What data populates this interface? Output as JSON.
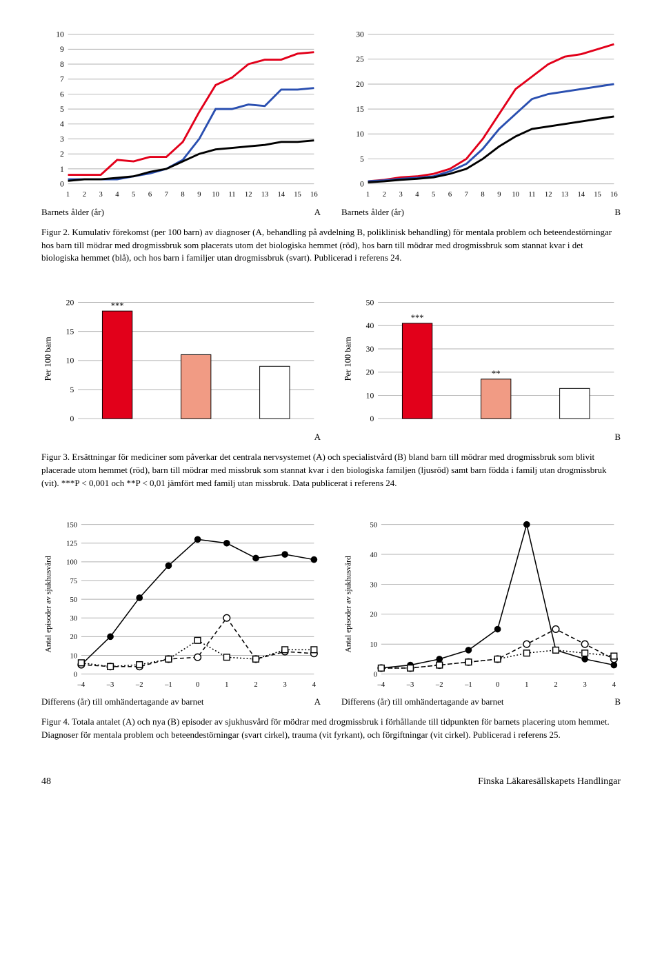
{
  "colors": {
    "red": "#e2001a",
    "blue": "#2a4fb0",
    "black": "#000000",
    "salmon": "#f19b84",
    "white": "#ffffff",
    "grid": "#b0b0b0",
    "text": "#000000"
  },
  "fig2": {
    "A": {
      "ylim": [
        0,
        10
      ],
      "yticks": [
        0,
        1,
        2,
        3,
        4,
        5,
        6,
        7,
        8,
        9,
        10
      ],
      "xlim": [
        1,
        16
      ],
      "xticks": [
        1,
        2,
        3,
        4,
        5,
        6,
        7,
        8,
        9,
        10,
        11,
        12,
        13,
        14,
        15,
        16
      ],
      "xlabel": "Barnets ålder (år)",
      "panel": "A",
      "series": [
        {
          "color": "red",
          "width": 3,
          "y": [
            0.6,
            0.6,
            0.6,
            1.6,
            1.5,
            1.8,
            1.8,
            2.8,
            4.8,
            6.6,
            7.1,
            8.0,
            8.3,
            8.3,
            8.7,
            8.8
          ]
        },
        {
          "color": "blue",
          "width": 3,
          "y": [
            0.3,
            0.3,
            0.3,
            0.3,
            0.5,
            0.7,
            1.0,
            1.6,
            3.0,
            5.0,
            5.0,
            5.3,
            5.2,
            6.3,
            6.3,
            6.4
          ]
        },
        {
          "color": "black",
          "width": 3,
          "y": [
            0.2,
            0.3,
            0.3,
            0.4,
            0.5,
            0.8,
            1.0,
            1.5,
            2.0,
            2.3,
            2.4,
            2.5,
            2.6,
            2.8,
            2.8,
            2.9
          ]
        }
      ]
    },
    "B": {
      "ylim": [
        0,
        30
      ],
      "yticks": [
        0,
        5,
        10,
        15,
        20,
        25,
        30
      ],
      "xlim": [
        1,
        16
      ],
      "xticks": [
        1,
        2,
        3,
        4,
        5,
        6,
        7,
        8,
        9,
        10,
        11,
        12,
        13,
        14,
        15,
        16
      ],
      "xlabel": "Barnets ålder (år)",
      "panel": "B",
      "series": [
        {
          "color": "red",
          "width": 3,
          "y": [
            0.5,
            0.8,
            1.3,
            1.5,
            2.0,
            3.0,
            5.0,
            9.0,
            14.0,
            19.0,
            21.5,
            24.0,
            25.5,
            26.0,
            27.0,
            28.0
          ]
        },
        {
          "color": "blue",
          "width": 3,
          "y": [
            0.5,
            0.7,
            1.0,
            1.2,
            1.5,
            2.5,
            4.0,
            7.0,
            11.0,
            14.0,
            17.0,
            18.0,
            18.5,
            19.0,
            19.5,
            20.0
          ]
        },
        {
          "color": "black",
          "width": 3,
          "y": [
            0.3,
            0.5,
            0.8,
            1.0,
            1.3,
            2.0,
            3.0,
            5.0,
            7.5,
            9.5,
            11.0,
            11.5,
            12.0,
            12.5,
            13.0,
            13.5
          ]
        }
      ]
    },
    "caption": "Figur 2. Kumulativ förekomst (per 100 barn) av diagnoser (A, behandling på avdelning B, poliklinisk behandling) för mentala problem och beteendestörningar hos barn till mödrar med drogmissbruk som placerats utom det biologiska hemmet (röd), hos barn till mödrar med drogmissbruk som stannat kvar i det biologiska hemmet (blå), och hos barn i familjer utan drogmissbruk (svart). Publicerad i referens 24."
  },
  "fig3": {
    "A": {
      "ylim": [
        0,
        20
      ],
      "yticks": [
        0,
        5,
        10,
        15,
        20
      ],
      "ylabel": "Per 100 barn",
      "panel": "A",
      "bars": [
        {
          "v": 18.5,
          "fill": "red",
          "sig": "***"
        },
        {
          "v": 11,
          "fill": "salmon"
        },
        {
          "v": 9,
          "fill": "white"
        }
      ]
    },
    "B": {
      "ylim": [
        0,
        50
      ],
      "yticks": [
        0,
        10,
        20,
        30,
        40,
        50
      ],
      "ylabel": "Per 100 barn",
      "panel": "B",
      "bars": [
        {
          "v": 41,
          "fill": "red",
          "sig": "***"
        },
        {
          "v": 17,
          "fill": "salmon",
          "sig": "**"
        },
        {
          "v": 13,
          "fill": "white"
        }
      ]
    },
    "caption": "Figur 3. Ersättningar för mediciner som påverkar det centrala nervsystemet (A) och specialistvård (B) bland barn till mödrar med drogmissbruk som blivit placerade utom hemmet (röd), barn till mödrar med missbruk som stannat kvar i den biologiska familjen (ljusröd) samt barn födda i familj utan drogmissbruk (vit). ***P < 0,001 och **P < 0,01 jämfört med familj utan missbruk. Data publicerat i referens 24."
  },
  "fig4": {
    "A": {
      "ylim": [
        0,
        150
      ],
      "type": "log-ish",
      "yticks": [
        0,
        10,
        20,
        30,
        50,
        75,
        100,
        125,
        150
      ],
      "xlim": [
        -4,
        4
      ],
      "xticks": [
        -4,
        -3,
        -2,
        -1,
        0,
        1,
        2,
        3,
        4
      ],
      "xlabel": "Differens (år) till omhändertagande av barnet",
      "panel": "A",
      "ylabel": "Antal episoder av sjukhusvård",
      "series": [
        {
          "marker": "fc",
          "line": "solid",
          "y": [
            5,
            20,
            52,
            95,
            130,
            125,
            105,
            110,
            103
          ]
        },
        {
          "marker": "oc",
          "line": "dash",
          "y": [
            5,
            4,
            4,
            8,
            9,
            30,
            8,
            12,
            11
          ]
        },
        {
          "marker": "sq",
          "line": "dot",
          "y": [
            6,
            4,
            5,
            8,
            18,
            9,
            8,
            13,
            13
          ]
        }
      ]
    },
    "B": {
      "ylim": [
        0,
        50
      ],
      "yticks": [
        0,
        10,
        20,
        30,
        40,
        50
      ],
      "xlim": [
        -4,
        4
      ],
      "xticks": [
        -4,
        -3,
        -2,
        -1,
        0,
        1,
        2,
        3,
        4
      ],
      "xlabel": "Differens (år) till omhändertagande av barnet",
      "panel": "B",
      "ylabel": "Antal episoder av sjukhusvård",
      "series": [
        {
          "marker": "fc",
          "line": "solid",
          "y": [
            2,
            3,
            5,
            8,
            15,
            50,
            8,
            5,
            3
          ]
        },
        {
          "marker": "oc",
          "line": "dash",
          "y": [
            2,
            2,
            3,
            4,
            5,
            10,
            15,
            10,
            5
          ]
        },
        {
          "marker": "sq",
          "line": "dot",
          "y": [
            2,
            2,
            3,
            4,
            5,
            7,
            8,
            7,
            6
          ]
        }
      ]
    },
    "caption": "Figur 4. Totala antalet (A) och nya (B) episoder av sjukhusvård för mödrar med drogmissbruk i förhållande till tidpunkten för barnets placering utom hemmet. Diagnoser för mentala problem och beteendestörningar (svart cirkel), trauma (vit fyrkant), och förgiftningar (vit cirkel). Publicerad i referens 25."
  },
  "footer": {
    "page": "48",
    "journal": "Finska Läkaresällskapets Handlingar"
  }
}
